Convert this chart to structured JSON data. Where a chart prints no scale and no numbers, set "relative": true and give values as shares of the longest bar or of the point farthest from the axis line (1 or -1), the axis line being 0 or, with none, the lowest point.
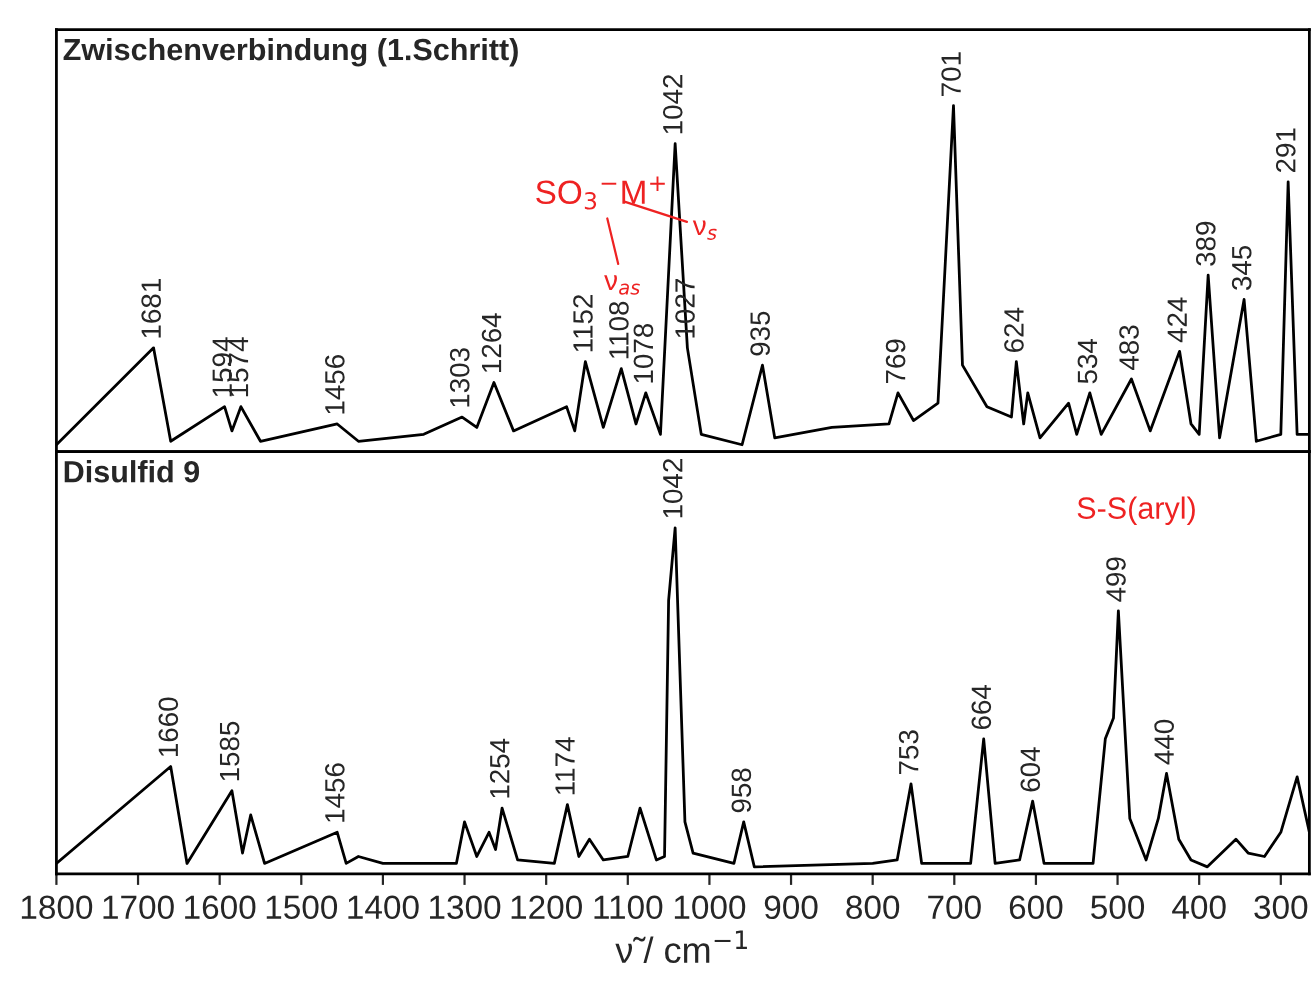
{
  "chart_data": [
    {
      "type": "line",
      "title": "Zwischenverbindung (1.Schritt)",
      "relative": true,
      "tick_labels": false,
      "xlim": [
        1800,
        265
      ],
      "xticks": [
        1800,
        1700,
        1600,
        1500,
        1400,
        1300,
        1200,
        1100,
        1000,
        900,
        800,
        700,
        600,
        500,
        400,
        300
      ],
      "x": [
        1800,
        1681,
        1660,
        1594,
        1585,
        1574,
        1550,
        1456,
        1430,
        1350,
        1303,
        1285,
        1264,
        1240,
        1175,
        1165,
        1152,
        1130,
        1108,
        1090,
        1078,
        1060,
        1042,
        1027,
        1010,
        960,
        935,
        920,
        850,
        780,
        769,
        750,
        720,
        701,
        690,
        660,
        630,
        624,
        615,
        610,
        595,
        560,
        550,
        534,
        520,
        483,
        460,
        424,
        410,
        400,
        389,
        375,
        345,
        330,
        300,
        291,
        280,
        265
      ],
      "series": [
        {
          "color": "#000000",
          "values": [
            0.02,
            0.3,
            0.03,
            0.13,
            0.06,
            0.13,
            0.03,
            0.08,
            0.03,
            0.05,
            0.1,
            0.07,
            0.2,
            0.06,
            0.13,
            0.06,
            0.26,
            0.07,
            0.24,
            0.08,
            0.17,
            0.05,
            0.89,
            0.3,
            0.05,
            0.02,
            0.25,
            0.04,
            0.07,
            0.08,
            0.17,
            0.09,
            0.14,
            1.0,
            0.25,
            0.13,
            0.1,
            0.26,
            0.08,
            0.17,
            0.04,
            0.14,
            0.05,
            0.17,
            0.05,
            0.21,
            0.06,
            0.29,
            0.08,
            0.05,
            0.51,
            0.04,
            0.44,
            0.03,
            0.05,
            0.78,
            0.05,
            0.05
          ]
        }
      ],
      "annotations": [
        "SO$_{3}$$^{−}$M$^{+}$",
        "ν$_{as}$",
        "ν$_{s}$",
        {
          "text": "1681",
          "x": 1681,
          "y": 0.3
        },
        {
          "text": "1594",
          "x": 1594,
          "y": 0.13
        },
        {
          "text": "1574",
          "x": 1574,
          "y": 0.13
        },
        {
          "text": "1456",
          "x": 1456,
          "y": 0.08
        },
        {
          "text": "1303",
          "x": 1303,
          "y": 0.1
        },
        {
          "text": "1264",
          "x": 1264,
          "y": 0.2
        },
        {
          "text": "1152",
          "x": 1152,
          "y": 0.26
        },
        {
          "text": "1108",
          "x": 1108,
          "y": 0.24
        },
        {
          "text": "1078",
          "x": 1078,
          "y": 0.17
        },
        {
          "text": "1042",
          "x": 1042,
          "y": 0.89
        },
        {
          "text": "1027",
          "x": 1027,
          "y": 0.3
        },
        {
          "text": "935",
          "x": 935,
          "y": 0.25
        },
        {
          "text": "769",
          "x": 769,
          "y": 0.17
        },
        {
          "text": "701",
          "x": 701,
          "y": 1.0
        },
        {
          "text": "624",
          "x": 624,
          "y": 0.26
        },
        {
          "text": "534",
          "x": 534,
          "y": 0.17
        },
        {
          "text": "483",
          "x": 483,
          "y": 0.21
        },
        {
          "text": "424",
          "x": 424,
          "y": 0.29
        },
        {
          "text": "389",
          "x": 389,
          "y": 0.51
        },
        {
          "text": "345",
          "x": 345,
          "y": 0.44
        },
        {
          "text": "291",
          "x": 291,
          "y": 0.78
        }
      ]
    },
    {
      "type": "line",
      "title": "Disulfid 9",
      "relative": true,
      "tick_labels": "x",
      "xlim": [
        1800,
        265
      ],
      "xticks": [
        1800,
        1700,
        1600,
        1500,
        1400,
        1300,
        1200,
        1100,
        1000,
        900,
        800,
        700,
        600,
        500,
        400,
        300
      ],
      "xlabel": "ν̃ / cm$^{−1}$",
      "x": [
        1800,
        1660,
        1640,
        1585,
        1572,
        1562,
        1545,
        1456,
        1445,
        1430,
        1400,
        1310,
        1300,
        1285,
        1270,
        1262,
        1254,
        1235,
        1190,
        1174,
        1160,
        1147,
        1130,
        1100,
        1085,
        1065,
        1055,
        1050,
        1042,
        1030,
        1020,
        970,
        958,
        945,
        800,
        770,
        753,
        740,
        680,
        664,
        650,
        620,
        604,
        590,
        530,
        515,
        505,
        499,
        485,
        465,
        450,
        440,
        425,
        410,
        390,
        355,
        340,
        320,
        300,
        280,
        265
      ],
      "series": [
        {
          "color": "#000000",
          "values": [
            0.03,
            0.31,
            0.03,
            0.24,
            0.06,
            0.17,
            0.03,
            0.12,
            0.03,
            0.05,
            0.03,
            0.03,
            0.15,
            0.05,
            0.12,
            0.07,
            0.19,
            0.04,
            0.03,
            0.2,
            0.05,
            0.1,
            0.04,
            0.05,
            0.19,
            0.04,
            0.05,
            0.79,
            1.0,
            0.15,
            0.06,
            0.03,
            0.15,
            0.02,
            0.03,
            0.04,
            0.26,
            0.03,
            0.03,
            0.39,
            0.03,
            0.04,
            0.21,
            0.03,
            0.03,
            0.39,
            0.45,
            0.76,
            0.16,
            0.04,
            0.16,
            0.29,
            0.1,
            0.04,
            0.02,
            0.1,
            0.06,
            0.05,
            0.12,
            0.28,
            0.12
          ]
        }
      ],
      "annotations": [
        "S-S(aryl)",
        {
          "text": "1660",
          "x": 1660,
          "y": 0.31
        },
        {
          "text": "1585",
          "x": 1585,
          "y": 0.24
        },
        {
          "text": "1456",
          "x": 1456,
          "y": 0.12
        },
        {
          "text": "1254",
          "x": 1254,
          "y": 0.19
        },
        {
          "text": "1174",
          "x": 1174,
          "y": 0.2
        },
        {
          "text": "1042",
          "x": 1042,
          "y": 1.0
        },
        {
          "text": "958",
          "x": 958,
          "y": 0.15
        },
        {
          "text": "753",
          "x": 753,
          "y": 0.26
        },
        {
          "text": "664",
          "x": 664,
          "y": 0.39
        },
        {
          "text": "604",
          "x": 604,
          "y": 0.21
        },
        {
          "text": "499",
          "x": 499,
          "y": 0.76
        },
        {
          "text": "440",
          "x": 440,
          "y": 0.29
        }
      ]
    }
  ]
}
